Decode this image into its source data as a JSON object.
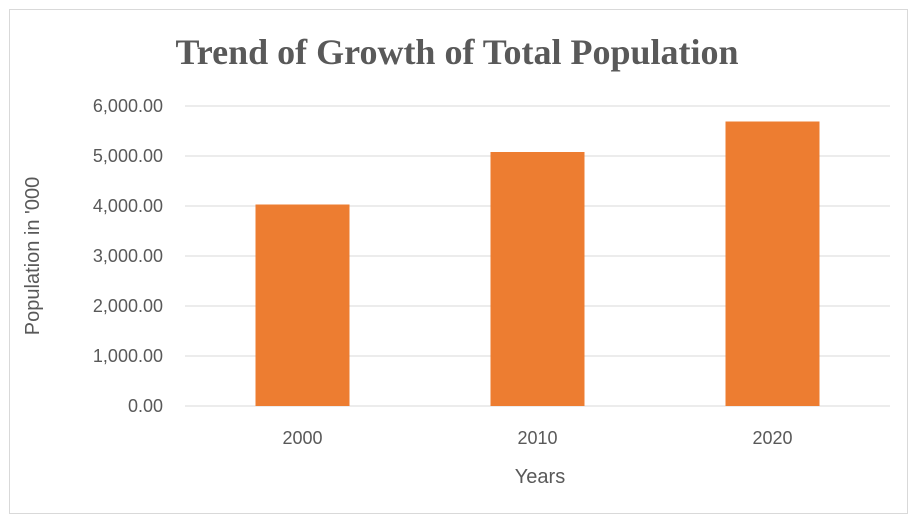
{
  "chart_data": {
    "type": "bar",
    "title": "Trend of Growth of Total Population",
    "xlabel": "Years",
    "ylabel": "Population in '000",
    "categories": [
      "2000",
      "2010",
      "2020"
    ],
    "values": [
      4030,
      5080,
      5690
    ],
    "ylim": [
      0,
      6000
    ],
    "yticks": [
      0,
      1000,
      2000,
      3000,
      4000,
      5000,
      6000
    ],
    "ytick_labels": [
      "0.00",
      "1,000.00",
      "2,000.00",
      "3,000.00",
      "4,000.00",
      "5,000.00",
      "6,000.00"
    ],
    "grid": true,
    "legend": "none",
    "colors": {
      "bar": "#ED7D31",
      "grid": "#D9D9D9",
      "text": "#595959"
    }
  }
}
